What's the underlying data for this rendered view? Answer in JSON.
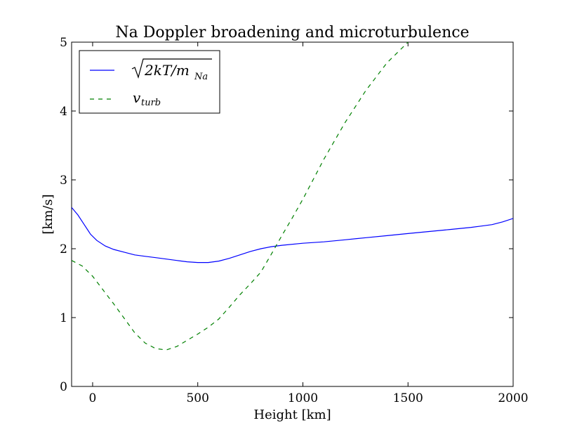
{
  "chart_data": {
    "type": "line",
    "title": "Na Doppler broadening and microturbulence",
    "xlabel": "Height [km]",
    "ylabel": "[km/s]",
    "xlim": [
      -100,
      2000
    ],
    "ylim": [
      0,
      5
    ],
    "xticks": [
      0,
      500,
      1000,
      1500,
      2000
    ],
    "yticks": [
      0,
      1,
      2,
      3,
      4,
      5
    ],
    "xtick_labels": [
      "0",
      "500",
      "1000",
      "1500",
      "2000"
    ],
    "ytick_labels": [
      "0",
      "1",
      "2",
      "3",
      "4",
      "5"
    ],
    "grid": false,
    "legend_position": "top-left",
    "series": [
      {
        "name": "√2kT/m_Na",
        "legend_main": "2kT/m",
        "legend_sub": "Na",
        "color": "#0000ff",
        "style": "solid",
        "x": [
          -100,
          -70,
          -40,
          -10,
          20,
          60,
          100,
          150,
          200,
          250,
          300,
          350,
          400,
          450,
          500,
          550,
          600,
          650,
          700,
          750,
          800,
          850,
          900,
          1000,
          1100,
          1200,
          1300,
          1400,
          1500,
          1600,
          1700,
          1800,
          1850,
          1900,
          1950,
          2000
        ],
        "y": [
          2.6,
          2.49,
          2.35,
          2.21,
          2.12,
          2.04,
          1.99,
          1.95,
          1.91,
          1.89,
          1.87,
          1.85,
          1.83,
          1.81,
          1.8,
          1.8,
          1.82,
          1.86,
          1.91,
          1.96,
          2.0,
          2.03,
          2.05,
          2.08,
          2.1,
          2.13,
          2.16,
          2.19,
          2.22,
          2.25,
          2.28,
          2.31,
          2.33,
          2.35,
          2.39,
          2.44
        ]
      },
      {
        "name": "v_turb",
        "legend_main": "v",
        "legend_sub": "turb",
        "color": "#008000",
        "style": "dashed",
        "x": [
          -100,
          -50,
          0,
          50,
          100,
          150,
          200,
          250,
          300,
          350,
          400,
          450,
          500,
          550,
          600,
          650,
          700,
          750,
          800,
          850,
          900,
          950,
          1000,
          1100,
          1200,
          1300,
          1400,
          1450,
          1500
        ],
        "y": [
          1.83,
          1.75,
          1.6,
          1.4,
          1.2,
          0.99,
          0.78,
          0.63,
          0.55,
          0.53,
          0.58,
          0.67,
          0.76,
          0.86,
          0.98,
          1.15,
          1.33,
          1.49,
          1.66,
          1.92,
          2.19,
          2.45,
          2.72,
          3.3,
          3.83,
          4.3,
          4.7,
          4.85,
          5.0
        ]
      }
    ]
  }
}
